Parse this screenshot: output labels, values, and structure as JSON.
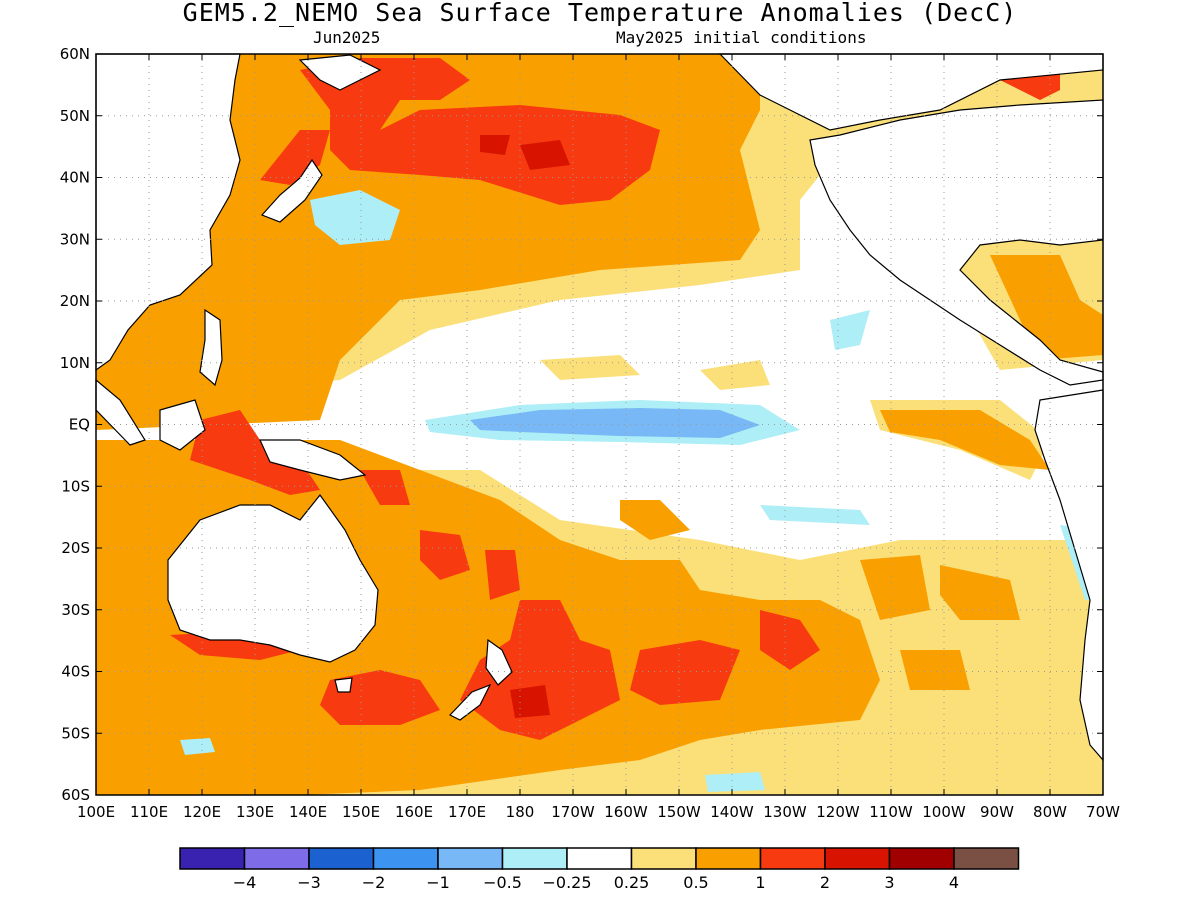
{
  "header": {
    "title": "GEM5.2_NEMO Sea Surface Temperature Anomalies (DecC)",
    "valid_month": "Jun2025",
    "init_note": "May2025 initial conditions"
  },
  "map": {
    "lat_labels": [
      "60N",
      "50N",
      "40N",
      "30N",
      "20N",
      "10N",
      "EQ",
      "10S",
      "20S",
      "30S",
      "40S",
      "50S",
      "60S"
    ],
    "lon_labels": [
      "100E",
      "110E",
      "120E",
      "130E",
      "140E",
      "150E",
      "160E",
      "170E",
      "180",
      "170W",
      "160W",
      "150W",
      "140W",
      "130W",
      "120W",
      "110W",
      "100W",
      "90W",
      "80W",
      "70W"
    ],
    "ocean_color": "#ffffff",
    "coast_color": "#000000",
    "grid": "dotted"
  },
  "colorbar": {
    "colors": [
      "#3a22b0",
      "#7d6be8",
      "#1b62d0",
      "#3c94f0",
      "#78b8f6",
      "#aeeef6",
      "#ffffff",
      "#fbe07a",
      "#f9a000",
      "#f83a10",
      "#d81400",
      "#a00000",
      "#7a5044"
    ],
    "labels": [
      "-4",
      "-3",
      "-2",
      "-1",
      "-0.5",
      "-0.25",
      "0.25",
      "0.5",
      "1",
      "2",
      "3",
      "4"
    ],
    "units": "DecC"
  }
}
